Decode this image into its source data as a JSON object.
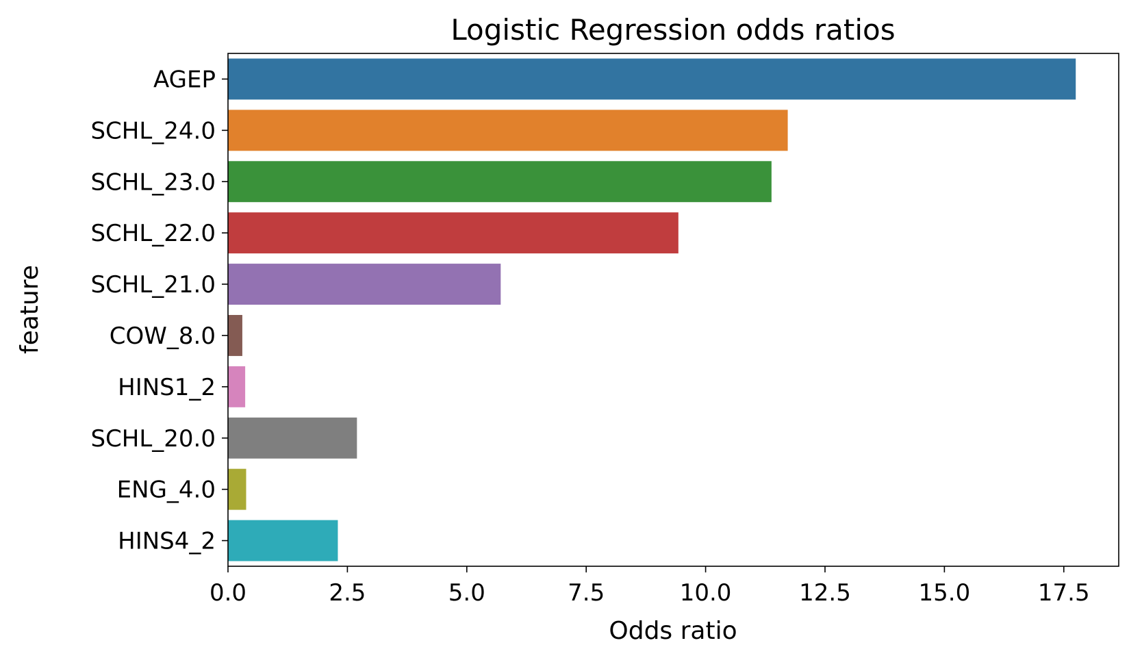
{
  "chart_data": {
    "type": "bar",
    "orientation": "horizontal",
    "title": "Logistic Regression odds ratios",
    "xlabel": "Odds ratio",
    "ylabel": "feature",
    "categories": [
      "AGEP",
      "SCHL_24.0",
      "SCHL_23.0",
      "SCHL_22.0",
      "SCHL_21.0",
      "COW_8.0",
      "HINS1_2",
      "SCHL_20.0",
      "ENG_4.0",
      "HINS4_2"
    ],
    "values": [
      17.75,
      11.72,
      11.38,
      9.43,
      5.71,
      0.3,
      0.36,
      2.7,
      0.38,
      2.3
    ],
    "colors": [
      "#3274a1",
      "#e1812c",
      "#3a923a",
      "#c03d3e",
      "#9372b2",
      "#845b53",
      "#d684bd",
      "#7f7f7f",
      "#a9aa35",
      "#2eabb8"
    ],
    "xlim": [
      0,
      18.65
    ],
    "xticks": [
      0.0,
      2.5,
      5.0,
      7.5,
      10.0,
      12.5,
      15.0,
      17.5
    ],
    "xtick_labels": [
      "0.0",
      "2.5",
      "5.0",
      "7.5",
      "10.0",
      "12.5",
      "15.0",
      "17.5"
    ],
    "grid": false,
    "legend": "none"
  }
}
